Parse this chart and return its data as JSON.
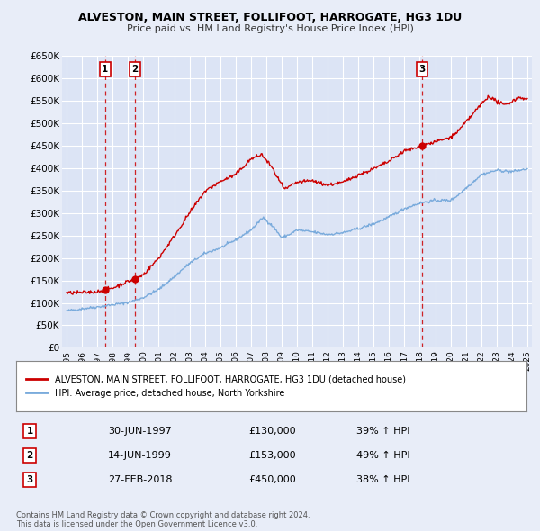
{
  "title": "ALVESTON, MAIN STREET, FOLLIFOOT, HARROGATE, HG3 1DU",
  "subtitle": "Price paid vs. HM Land Registry's House Price Index (HPI)",
  "bg_color": "#e8edf8",
  "plot_bg_color": "#dce4f5",
  "grid_color": "#ffffff",
  "ylim": [
    0,
    650000
  ],
  "yticks": [
    0,
    50000,
    100000,
    150000,
    200000,
    250000,
    300000,
    350000,
    400000,
    450000,
    500000,
    550000,
    600000,
    650000
  ],
  "sale_points": [
    {
      "date": 1997.5,
      "price": 130000,
      "label": "1"
    },
    {
      "date": 1999.46,
      "price": 153000,
      "label": "2"
    },
    {
      "date": 2018.15,
      "price": 450000,
      "label": "3"
    }
  ],
  "sale_color": "#cc0000",
  "hpi_color": "#7aabdc",
  "legend_entries": [
    "ALVESTON, MAIN STREET, FOLLIFOOT, HARROGATE, HG3 1DU (detached house)",
    "HPI: Average price, detached house, North Yorkshire"
  ],
  "table_rows": [
    {
      "num": "1",
      "date": "30-JUN-1997",
      "price": "£130,000",
      "pct": "39% ↑ HPI"
    },
    {
      "num": "2",
      "date": "14-JUN-1999",
      "price": "£153,000",
      "pct": "49% ↑ HPI"
    },
    {
      "num": "3",
      "date": "27-FEB-2018",
      "price": "£450,000",
      "pct": "38% ↑ HPI"
    }
  ],
  "footer": "Contains HM Land Registry data © Crown copyright and database right 2024.\nThis data is licensed under the Open Government Licence v3.0.",
  "xmin": 1994.7,
  "xmax": 2025.3
}
